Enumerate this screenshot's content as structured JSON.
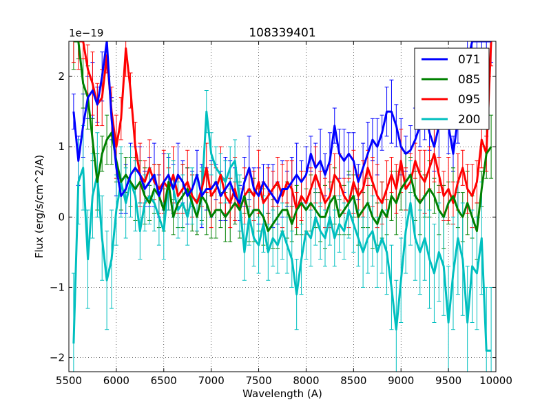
{
  "chart_data": {
    "type": "line",
    "title": "108339401",
    "xlabel": "Wavelength (A)",
    "ylabel": "Flux (erg/s/cm^2/A)",
    "y_scale_label": "1e−19",
    "xlim": [
      5500,
      10000
    ],
    "ylim": [
      -2.2,
      2.5
    ],
    "x_ticks": [
      5500,
      6000,
      6500,
      7000,
      7500,
      8000,
      8500,
      9000,
      9500,
      10000
    ],
    "x_tick_labels": [
      "5500",
      "6000",
      "6500",
      "7000",
      "7500",
      "8000",
      "8500",
      "9000",
      "9500",
      "10000"
    ],
    "y_ticks": [
      -2,
      -1,
      0,
      1,
      2
    ],
    "y_tick_labels": [
      "−2",
      "−1",
      "0",
      "1",
      "2"
    ],
    "grid": true,
    "legend_position": "top-right",
    "series": [
      {
        "name": "071",
        "color": "#0000ff",
        "x": [
          5550,
          5600,
          5650,
          5700,
          5750,
          5800,
          5850,
          5900,
          5950,
          6000,
          6050,
          6100,
          6150,
          6200,
          6250,
          6300,
          6350,
          6400,
          6450,
          6500,
          6550,
          6600,
          6650,
          6700,
          6750,
          6800,
          6850,
          6900,
          6950,
          7000,
          7050,
          7100,
          7150,
          7200,
          7250,
          7300,
          7350,
          7400,
          7450,
          7500,
          7550,
          7600,
          7650,
          7700,
          7750,
          7800,
          7850,
          7900,
          7950,
          8000,
          8050,
          8100,
          8150,
          8200,
          8250,
          8300,
          8350,
          8400,
          8450,
          8500,
          8550,
          8600,
          8650,
          8700,
          8750,
          8800,
          8850,
          8900,
          8950,
          9000,
          9050,
          9100,
          9150,
          9200,
          9250,
          9300,
          9350,
          9400,
          9450,
          9500,
          9550,
          9600,
          9650,
          9700,
          9750,
          9800,
          9850,
          9900,
          9950
        ],
        "y": [
          1.5,
          0.8,
          1.3,
          1.7,
          1.8,
          1.6,
          2.0,
          2.5,
          1.4,
          0.7,
          0.3,
          0.4,
          0.6,
          0.7,
          0.6,
          0.4,
          0.5,
          0.6,
          0.3,
          0.5,
          0.6,
          0.4,
          0.6,
          0.5,
          0.3,
          0.4,
          0.6,
          0.3,
          0.4,
          0.4,
          0.5,
          0.3,
          0.4,
          0.5,
          0.3,
          0.2,
          0.5,
          0.7,
          0.4,
          0.3,
          0.5,
          0.4,
          0.3,
          0.2,
          0.4,
          0.4,
          0.5,
          0.6,
          0.5,
          0.6,
          0.9,
          0.7,
          0.8,
          0.6,
          0.8,
          1.3,
          0.9,
          0.8,
          0.9,
          0.8,
          0.5,
          0.7,
          0.9,
          1.1,
          1.0,
          1.2,
          1.5,
          1.5,
          1.3,
          1.0,
          0.9,
          0.95,
          1.1,
          1.3,
          1.5,
          1.2,
          1.0,
          1.3,
          1.6,
          1.3,
          0.9,
          1.4,
          1.8,
          2.2,
          2.5,
          2.5,
          2.5,
          2.5,
          2.5
        ]
      },
      {
        "name": "085",
        "color": "#008000",
        "x": [
          5550,
          5600,
          5650,
          5700,
          5750,
          5800,
          5850,
          5900,
          5950,
          6000,
          6050,
          6100,
          6150,
          6200,
          6250,
          6300,
          6350,
          6400,
          6450,
          6500,
          6550,
          6600,
          6650,
          6700,
          6750,
          6800,
          6850,
          6900,
          6950,
          7000,
          7050,
          7100,
          7150,
          7200,
          7250,
          7300,
          7350,
          7400,
          7450,
          7500,
          7550,
          7600,
          7650,
          7700,
          7750,
          7800,
          7850,
          7900,
          7950,
          8000,
          8050,
          8100,
          8150,
          8200,
          8250,
          8300,
          8350,
          8400,
          8450,
          8500,
          8550,
          8600,
          8650,
          8700,
          8750,
          8800,
          8850,
          8900,
          8950,
          9000,
          9050,
          9100,
          9150,
          9200,
          9250,
          9300,
          9350,
          9400,
          9450,
          9500,
          9550,
          9600,
          9650,
          9700,
          9750,
          9800,
          9850,
          9900,
          9950
        ],
        "y": [
          2.5,
          2.5,
          1.9,
          1.7,
          1.1,
          0.5,
          0.9,
          1.1,
          1.2,
          0.8,
          0.5,
          0.6,
          0.5,
          0.4,
          0.5,
          0.3,
          0.2,
          0.4,
          0.3,
          0.1,
          0.5,
          0.0,
          0.2,
          0.3,
          0.4,
          0.2,
          0.0,
          0.3,
          0.2,
          0.0,
          0.1,
          0.1,
          0.0,
          0.1,
          0.2,
          0.1,
          0.3,
          0.0,
          0.1,
          0.1,
          0.0,
          -0.2,
          -0.1,
          0.0,
          0.1,
          0.1,
          -0.1,
          0.1,
          0.2,
          0.1,
          0.2,
          0.1,
          0.0,
          0.0,
          0.2,
          0.3,
          0.0,
          0.1,
          0.2,
          0.3,
          0.0,
          0.1,
          0.2,
          0.0,
          -0.1,
          0.1,
          0.0,
          0.3,
          0.2,
          0.4,
          0.5,
          0.6,
          0.3,
          0.2,
          0.3,
          0.4,
          0.3,
          0.1,
          0.0,
          0.2,
          0.3,
          0.1,
          0.0,
          0.2,
          0.0,
          -0.2,
          0.4,
          0.9,
          1.0
        ]
      },
      {
        "name": "095",
        "color": "#ff0000",
        "x": [
          5550,
          5600,
          5650,
          5700,
          5750,
          5800,
          5850,
          5900,
          5950,
          6000,
          6050,
          6100,
          6150,
          6200,
          6250,
          6300,
          6350,
          6400,
          6450,
          6500,
          6550,
          6600,
          6650,
          6700,
          6750,
          6800,
          6850,
          6900,
          6950,
          7000,
          7050,
          7100,
          7150,
          7200,
          7250,
          7300,
          7350,
          7400,
          7450,
          7500,
          7550,
          7600,
          7650,
          7700,
          7750,
          7800,
          7850,
          7900,
          7950,
          8000,
          8050,
          8100,
          8150,
          8200,
          8250,
          8300,
          8350,
          8400,
          8450,
          8500,
          8550,
          8600,
          8650,
          8700,
          8750,
          8800,
          8850,
          8900,
          8950,
          9000,
          9050,
          9100,
          9150,
          9200,
          9250,
          9300,
          9350,
          9400,
          9450,
          9500,
          9550,
          9600,
          9650,
          9700,
          9750,
          9800,
          9850,
          9900,
          9950
        ],
        "y": [
          2.5,
          2.5,
          2.5,
          2.1,
          1.9,
          1.6,
          1.7,
          2.3,
          1.5,
          1.0,
          1.4,
          2.4,
          1.8,
          1.0,
          0.6,
          0.5,
          0.7,
          0.5,
          0.4,
          0.5,
          0.4,
          0.6,
          0.3,
          0.4,
          0.5,
          0.3,
          0.2,
          0.4,
          0.7,
          0.3,
          0.4,
          0.6,
          0.3,
          0.2,
          0.4,
          0.1,
          0.3,
          0.4,
          0.3,
          0.5,
          0.2,
          0.3,
          0.4,
          0.5,
          0.3,
          0.5,
          0.4,
          0.1,
          0.3,
          0.2,
          0.4,
          0.6,
          0.4,
          0.2,
          0.3,
          0.6,
          0.5,
          0.3,
          0.2,
          0.5,
          0.3,
          0.4,
          0.7,
          0.5,
          0.3,
          0.2,
          0.4,
          0.6,
          0.4,
          0.8,
          0.4,
          0.5,
          0.8,
          0.6,
          0.5,
          0.7,
          0.9,
          0.6,
          0.3,
          0.4,
          0.2,
          0.5,
          0.7,
          0.4,
          0.3,
          0.5,
          1.1,
          0.9,
          2.5
        ]
      },
      {
        "name": "200",
        "color": "#00bfbf",
        "x": [
          5550,
          5600,
          5650,
          5700,
          5750,
          5800,
          5850,
          5900,
          5950,
          6000,
          6050,
          6100,
          6150,
          6200,
          6250,
          6300,
          6350,
          6400,
          6450,
          6500,
          6550,
          6600,
          6650,
          6700,
          6750,
          6800,
          6850,
          6900,
          6950,
          7000,
          7050,
          7100,
          7150,
          7200,
          7250,
          7300,
          7350,
          7400,
          7450,
          7500,
          7550,
          7600,
          7650,
          7700,
          7750,
          7800,
          7850,
          7900,
          7950,
          8000,
          8050,
          8100,
          8150,
          8200,
          8250,
          8300,
          8350,
          8400,
          8450,
          8500,
          8550,
          8600,
          8650,
          8700,
          8750,
          8800,
          8850,
          8900,
          8950,
          9000,
          9050,
          9100,
          9150,
          9200,
          9250,
          9300,
          9350,
          9400,
          9450,
          9500,
          9550,
          9600,
          9650,
          9700,
          9750,
          9800,
          9850,
          9900,
          9950
        ],
        "y": [
          -1.8,
          0.5,
          0.7,
          -0.6,
          0.3,
          0.6,
          -0.3,
          -0.9,
          -0.6,
          0.1,
          0.5,
          0.2,
          0.5,
          0.3,
          -0.2,
          0.2,
          0.3,
          0.2,
          0.0,
          -0.2,
          0.5,
          0.4,
          0.1,
          0.2,
          0.0,
          0.3,
          0.2,
          0.3,
          1.5,
          0.9,
          0.7,
          0.6,
          0.5,
          0.7,
          0.8,
          0.2,
          -0.5,
          0.0,
          -0.3,
          -0.4,
          -0.1,
          -0.5,
          -0.3,
          -0.4,
          -0.2,
          -0.4,
          -0.6,
          -1.1,
          -0.6,
          -0.2,
          -0.3,
          0.0,
          -0.2,
          -0.3,
          0.0,
          -0.3,
          -0.1,
          -0.2,
          0.1,
          -0.1,
          -0.3,
          -0.5,
          -0.3,
          -0.2,
          -0.5,
          -0.3,
          -0.5,
          -1.0,
          -1.6,
          -0.9,
          -0.2,
          0.2,
          -0.3,
          -0.5,
          -0.3,
          -0.6,
          -0.8,
          -0.5,
          -0.7,
          -1.5,
          -0.8,
          -0.3,
          -0.6,
          -1.5,
          -0.7,
          -0.8,
          -0.3,
          -1.9,
          -1.9
        ],
        "err": [
          1.0,
          0.6,
          0.6,
          0.7,
          0.6,
          0.6,
          0.6,
          0.7,
          0.7,
          0.5,
          0.5,
          0.5,
          0.5,
          0.5,
          0.4,
          0.4,
          0.4,
          0.4,
          0.4,
          0.4,
          0.4,
          0.4,
          0.4,
          0.4,
          0.4,
          0.4,
          0.4,
          0.4,
          0.3,
          0.3,
          0.3,
          0.3,
          0.3,
          0.3,
          0.3,
          0.4,
          0.4,
          0.4,
          0.4,
          0.4,
          0.4,
          0.4,
          0.4,
          0.4,
          0.4,
          0.4,
          0.4,
          0.5,
          0.5,
          0.4,
          0.4,
          0.4,
          0.4,
          0.4,
          0.4,
          0.4,
          0.4,
          0.4,
          0.4,
          0.4,
          0.4,
          0.5,
          0.5,
          0.5,
          0.5,
          0.5,
          0.6,
          0.6,
          0.7,
          0.6,
          0.6,
          0.6,
          0.6,
          0.6,
          0.6,
          0.7,
          0.7,
          0.7,
          0.7,
          0.8,
          0.8,
          0.8,
          0.8,
          0.8,
          0.8,
          0.8,
          0.8,
          0.9,
          0.9
        ]
      }
    ]
  }
}
